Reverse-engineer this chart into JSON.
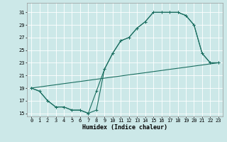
{
  "xlabel": "Humidex (Indice chaleur)",
  "ylabel": "",
  "background_color": "#cce8e8",
  "grid_color": "#b0d8d8",
  "line_color": "#1a6e60",
  "xlim": [
    -0.5,
    23.5
  ],
  "ylim": [
    14.5,
    32.5
  ],
  "xticks": [
    0,
    1,
    2,
    3,
    4,
    5,
    6,
    7,
    8,
    9,
    10,
    11,
    12,
    13,
    14,
    15,
    16,
    17,
    18,
    19,
    20,
    21,
    22,
    23
  ],
  "yticks": [
    15,
    17,
    19,
    21,
    23,
    25,
    27,
    29,
    31
  ],
  "line1_x": [
    0,
    1,
    2,
    3,
    4,
    5,
    6,
    7,
    8,
    9,
    10,
    11,
    12,
    13,
    14,
    15,
    16,
    17,
    18,
    19,
    20,
    21,
    22,
    23
  ],
  "line1_y": [
    19,
    18.5,
    17,
    16,
    16,
    15.5,
    15.5,
    15,
    18.5,
    22,
    24.5,
    26.5,
    27,
    28.5,
    29.5,
    31,
    31,
    31,
    31,
    30.5,
    29,
    24.5,
    23,
    23
  ],
  "line2_x": [
    0,
    1,
    2,
    3,
    4,
    5,
    6,
    7,
    8,
    9,
    10,
    11,
    12,
    13,
    14,
    15,
    16,
    17,
    18,
    19,
    20,
    21,
    22,
    23
  ],
  "line2_y": [
    19,
    18.5,
    17,
    16,
    16,
    15.5,
    15.5,
    15,
    15.5,
    22,
    24.5,
    26.5,
    27,
    28.5,
    29.5,
    31,
    31,
    31,
    31,
    30.5,
    29,
    24.5,
    23,
    23
  ],
  "line3_x": [
    0,
    1,
    2,
    3,
    4,
    5,
    6,
    7,
    8,
    9,
    10,
    11,
    12,
    13,
    14,
    15,
    16,
    17,
    18,
    19,
    20,
    21,
    22,
    23
  ],
  "line3_y": [
    19,
    19.17,
    19.35,
    19.52,
    19.7,
    19.87,
    20.04,
    20.22,
    20.39,
    20.57,
    20.74,
    20.91,
    21.09,
    21.26,
    21.43,
    21.61,
    21.78,
    21.96,
    22.13,
    22.3,
    22.48,
    22.65,
    22.83,
    23.0
  ]
}
